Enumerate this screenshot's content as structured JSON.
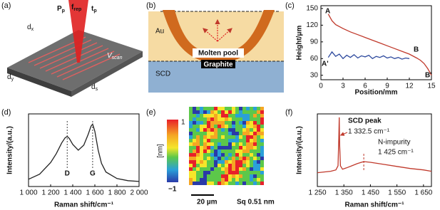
{
  "panel_labels": [
    "(a)",
    "(b)",
    "(c)",
    "(d)",
    "(e)",
    "(f)"
  ],
  "schematic_a": {
    "labels": [
      {
        "main": "P",
        "sub": "p"
      },
      {
        "main": "f",
        "sub": "rep"
      },
      {
        "main": "t",
        "sub": "p"
      },
      {
        "main": "d",
        "sub": "x"
      },
      {
        "main": "d",
        "sub": "y"
      },
      {
        "main": "d",
        "sub": "s"
      },
      {
        "main": "V",
        "sub": "scan"
      }
    ]
  },
  "schematic_b": {
    "labels": [
      "Au",
      "SCD",
      "Molten pool",
      "Graphite"
    ]
  },
  "map_e": {
    "colorbar_label": "[nm]",
    "colorbar_ticks": [
      "1",
      "−1"
    ],
    "scale_bar": "20 µm",
    "roughness": "Sq 0.51 nm"
  },
  "chart_data": [
    {
      "type": "line",
      "xlabel": "Position/mm",
      "ylabel": "Height/μm",
      "xlim": [
        0,
        15
      ],
      "xticks": [
        0,
        3,
        6,
        9,
        12,
        15
      ],
      "ylim": [
        22,
        155
      ],
      "yticks": [
        30,
        60,
        90,
        120,
        150
      ],
      "series": [
        {
          "color": "#c0392b",
          "x": [
            1,
            1.5,
            2,
            3,
            4,
            5,
            6,
            7,
            8,
            9,
            10,
            11,
            12,
            13,
            13.5,
            14,
            14.5,
            15
          ],
          "values": [
            140,
            128,
            121,
            114,
            108,
            103,
            98,
            93,
            88,
            83,
            78,
            73,
            68,
            61,
            57,
            51,
            42,
            30
          ]
        },
        {
          "color": "#2e4a9e",
          "x": [
            1,
            1.5,
            2,
            2.5,
            3,
            3.5,
            4,
            4.5,
            5,
            5.5,
            6,
            6.5,
            7,
            7.5,
            8,
            8.5,
            9,
            9.5,
            10,
            10.5,
            11,
            11.5,
            12
          ],
          "values": [
            62,
            72,
            64,
            68,
            60,
            66,
            62,
            67,
            61,
            65,
            63,
            66,
            60,
            64,
            62,
            65,
            61,
            63,
            60,
            62,
            59,
            61,
            60
          ]
        }
      ],
      "annotations": [
        "A",
        "A'",
        "B",
        "B'"
      ]
    },
    {
      "type": "line",
      "xlabel": "Raman shift/cm⁻¹",
      "ylabel": "Intensity/(a.u.)",
      "xlim": [
        1000,
        2000
      ],
      "xticks": [
        {
          "value": 1000,
          "label": "1 000"
        },
        {
          "value": 1200,
          "label": "1 200"
        },
        {
          "value": 1400,
          "label": "1 400"
        },
        {
          "value": 1600,
          "label": "1 600"
        },
        {
          "value": 1800,
          "label": "1 800"
        },
        {
          "value": 2000,
          "label": "2 000"
        }
      ],
      "ylim": [
        0,
        100
      ],
      "color": "#222222",
      "x": [
        1000,
        1100,
        1200,
        1250,
        1300,
        1330,
        1350,
        1370,
        1400,
        1450,
        1500,
        1540,
        1565,
        1580,
        1600,
        1630,
        1660,
        1700,
        1800,
        1900,
        2000
      ],
      "values": [
        10,
        17,
        33,
        45,
        60,
        67,
        69,
        66,
        58,
        50,
        57,
        72,
        83,
        86,
        76,
        50,
        32,
        20,
        11,
        8,
        7
      ],
      "peaks": [
        {
          "label": "D",
          "x": 1350
        },
        {
          "label": "G",
          "x": 1580
        }
      ]
    },
    {
      "type": "line",
      "xlabel": "Raman shift/cm⁻¹",
      "ylabel": "Intensity/(a.u.)",
      "xlim": [
        1250,
        1680
      ],
      "xticks": [
        {
          "value": 1250,
          "label": "1 250"
        },
        {
          "value": 1350,
          "label": "1 350"
        },
        {
          "value": 1450,
          "label": "1 450"
        },
        {
          "value": 1550,
          "label": "1 550"
        },
        {
          "value": 1650,
          "label": "1 650"
        }
      ],
      "ylim": [
        0,
        105
      ],
      "color": "#c0392b",
      "x": [
        1250,
        1300,
        1320,
        1328,
        1331,
        1332.5,
        1334,
        1337,
        1345,
        1360,
        1380,
        1400,
        1425,
        1450,
        1500,
        1550,
        1600,
        1650,
        1680
      ],
      "values": [
        20,
        22,
        24,
        30,
        70,
        100,
        60,
        30,
        25,
        27,
        30,
        33,
        36,
        35,
        32,
        29,
        26,
        24,
        22
      ],
      "peaks": [
        {
          "label": "SCD peak",
          "position_label": "1 332.5 cm⁻¹",
          "x": 1332.5
        },
        {
          "label": "N-impurity",
          "position_label": "1 425 cm⁻¹",
          "x": 1425
        }
      ]
    }
  ]
}
